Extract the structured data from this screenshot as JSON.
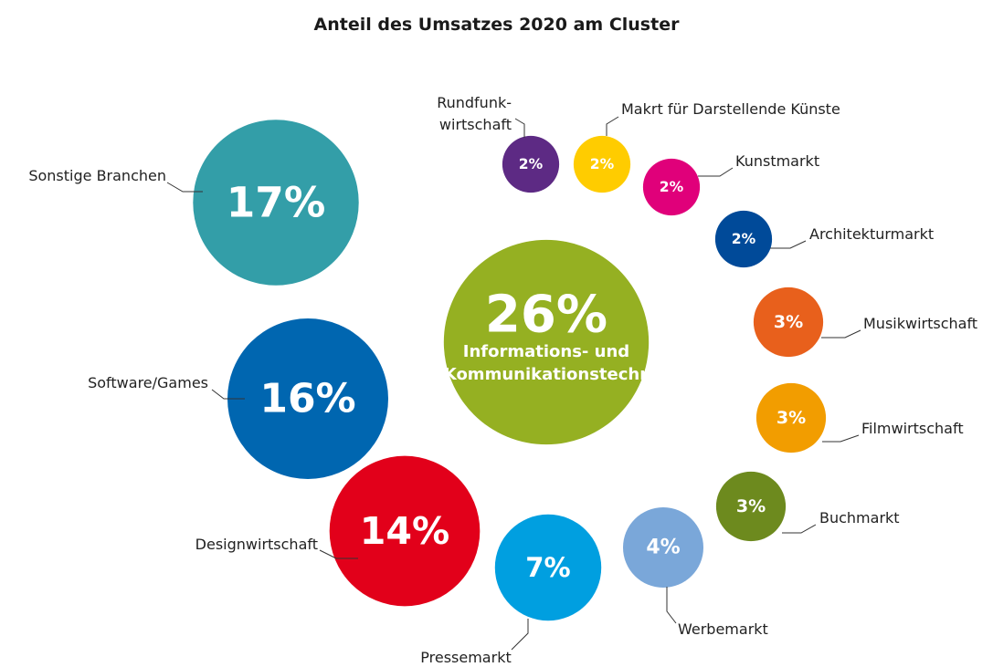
{
  "chart_data": {
    "type": "bubble",
    "title": "Anteil des Umsatzes 2020 am Cluster",
    "categories": [
      "Informations- und\nKommunikationstechnik",
      "Sonstige Branchen",
      "Software/Games",
      "Designwirtschaft",
      "Pressemarkt",
      "Werbemarkt",
      "Buchmarkt",
      "Filmwirtschaft",
      "Musikwirtschaft",
      "Architekturmarkt",
      "Kunstmarkt",
      "Makrt für Darstellende Künste",
      "Rundfunk-\nwirtschaft"
    ],
    "values": [
      26,
      17,
      16,
      14,
      7,
      4,
      3,
      3,
      3,
      2,
      2,
      2,
      2
    ],
    "value_labels": [
      "26%",
      "17%",
      "16%",
      "14%",
      "7%",
      "4%",
      "3%",
      "3%",
      "3%",
      "2%",
      "2%",
      "2%",
      "2%"
    ],
    "colors": [
      "#95b022",
      "#339ea8",
      "#0066b0",
      "#e2001a",
      "#009fe0",
      "#7aa7d9",
      "#6d8a1e",
      "#f29d00",
      "#e8601c",
      "#004a99",
      "#e0007a",
      "#ffcc00",
      "#5d2a84"
    ]
  }
}
